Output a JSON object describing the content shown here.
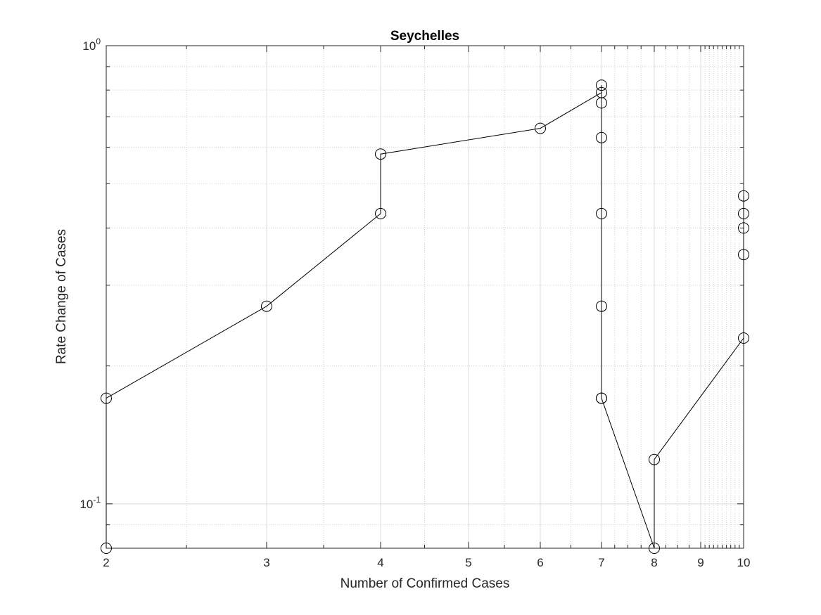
{
  "chart_data": {
    "type": "line",
    "title": "Seychelles",
    "xlabel": "Number of Confirmed Cases",
    "ylabel": "Rate Change of Cases",
    "x_scale": "log",
    "y_scale": "log",
    "xlim": [
      2,
      10
    ],
    "ylim": [
      0.08,
      1.0
    ],
    "grid": true,
    "marker": "circle",
    "x_tick_labels": [
      "2",
      "3",
      "4",
      "5",
      "6",
      "7",
      "8",
      "9",
      "10"
    ],
    "x_tick_values": [
      2,
      3,
      4,
      5,
      6,
      7,
      8,
      9,
      10
    ],
    "y_tick_labels": [
      {
        "base": "10",
        "exp": "0",
        "value": 1.0
      },
      {
        "base": "10",
        "exp": "-1",
        "value": 0.1
      }
    ],
    "series": [
      {
        "x": [
          2,
          2,
          3,
          4,
          4,
          6,
          7,
          7,
          7,
          7,
          7,
          7,
          7,
          7,
          8,
          8,
          10,
          10,
          10,
          10,
          10
        ],
        "y": [
          0.08,
          0.17,
          0.27,
          0.43,
          0.58,
          0.66,
          0.79,
          0.82,
          0.75,
          0.63,
          0.43,
          0.27,
          0.17,
          0.17,
          0.08,
          0.125,
          0.23,
          0.35,
          0.4,
          0.43,
          0.47
        ]
      }
    ]
  }
}
